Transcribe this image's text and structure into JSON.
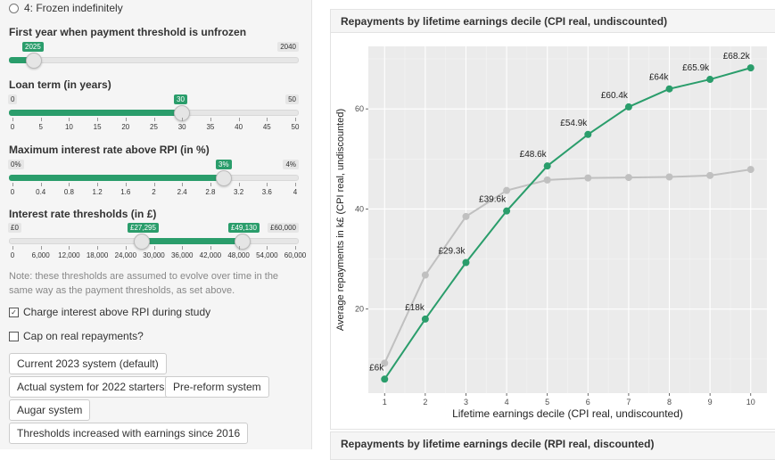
{
  "sidebar": {
    "radio_option": "4: Frozen indefinitely",
    "unfreeze": {
      "label": "First year when payment threshold is unfrozen",
      "min": "2025",
      "max": "2040",
      "value": "2025",
      "fraction": 0.0
    },
    "loan_term": {
      "label": "Loan term (in years)",
      "min": "0",
      "max": "50",
      "value": "30",
      "fraction": 0.6,
      "ticks": [
        "0",
        "5",
        "10",
        "15",
        "20",
        "25",
        "30",
        "35",
        "40",
        "45",
        "50"
      ]
    },
    "interest": {
      "label": "Maximum interest rate above RPI (in %)",
      "min": "0%",
      "max": "4%",
      "value": "3%",
      "fraction": 0.75,
      "ticks": [
        "0",
        "0.4",
        "0.8",
        "1.2",
        "1.6",
        "2",
        "2.4",
        "2.8",
        "3.2",
        "3.6",
        "4"
      ]
    },
    "thresholds": {
      "label": "Interest rate thresholds (in £)",
      "min": "£0",
      "max": "£60,000",
      "low": "£27,295",
      "high": "£49,130",
      "low_fraction": 0.4549,
      "high_fraction": 0.8188,
      "ticks": [
        "0",
        "6,000",
        "12,000",
        "18,000",
        "24,000",
        "30,000",
        "36,000",
        "42,000",
        "48,000",
        "54,000",
        "60,000"
      ]
    },
    "note": "Note: these thresholds are assumed to evolve over time in the same way as the payment thresholds, as set above.",
    "charge_interest": {
      "label": "Charge interest above RPI during study",
      "checked": "✓"
    },
    "cap_repayments": {
      "label": "Cap on real repayments?"
    },
    "buttons": {
      "current": "Current 2023 system (default)",
      "actual2022": "Actual system for 2022 starters",
      "prereform": "Pre-reform system",
      "augar": "Augar system",
      "thresholds2016": "Thresholds increased with earnings since 2016"
    }
  },
  "panel1_title": "Repayments by lifetime earnings decile (CPI real, undiscounted)",
  "panel2_title": "Repayments by lifetime earnings decile (RPI real, discounted)",
  "colors": {
    "accent": "#2a9d6b",
    "grey_series": "#c0c0c0",
    "plot_bg": "#ebebeb"
  },
  "chart_data": {
    "type": "line",
    "xlabel": "Lifetime earnings decile (CPI real, undiscounted)",
    "ylabel": "Average repayments in k£ (CPI real, undiscounted)",
    "x": [
      1,
      2,
      3,
      4,
      5,
      6,
      7,
      8,
      9,
      10
    ],
    "xlim": [
      0.6,
      10.4
    ],
    "ylim": [
      3.2,
      72.5
    ],
    "yticks": [
      20,
      40,
      60
    ],
    "grid": true,
    "series": [
      {
        "values": [
          6.0,
          18.0,
          29.3,
          39.6,
          48.6,
          54.9,
          60.4,
          64.0,
          65.9,
          68.2
        ],
        "labels": [
          "£6k",
          "£18k",
          "£29.3k",
          "£39.6k",
          "£48.6k",
          "£54.9k",
          "£60.4k",
          "£64k",
          "£65.9k",
          "£68.2k"
        ]
      },
      {
        "values": [
          9.2,
          26.8,
          38.5,
          43.7,
          45.8,
          46.2,
          46.3,
          46.4,
          46.7,
          47.9
        ]
      }
    ]
  }
}
